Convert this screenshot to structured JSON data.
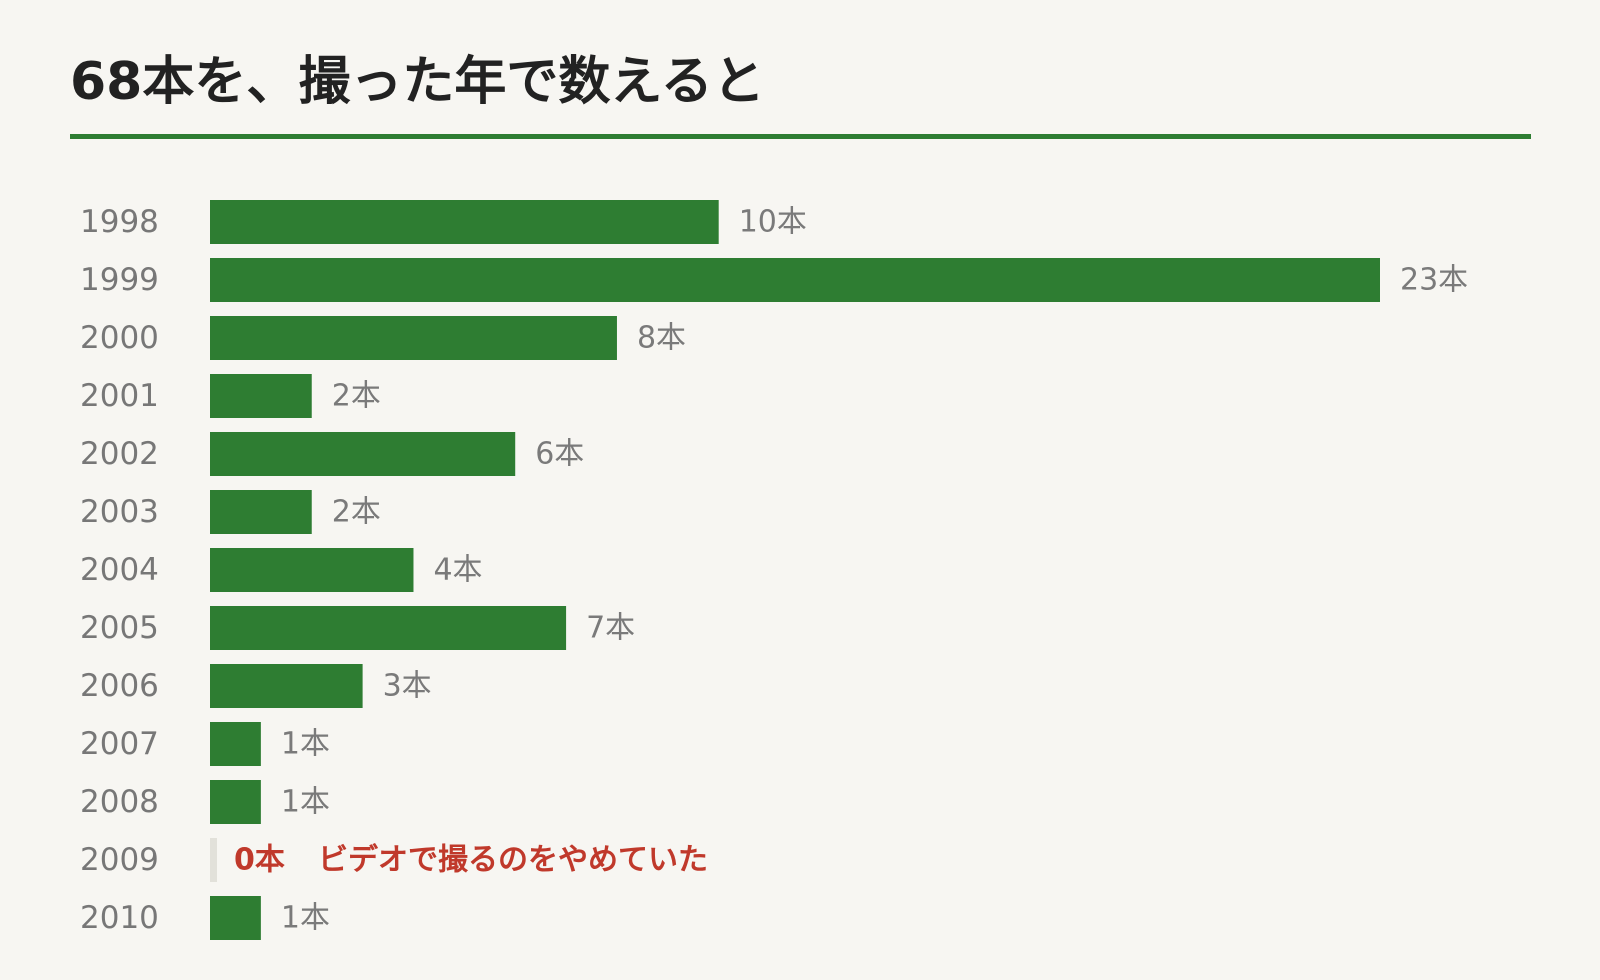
{
  "title": "68本を、撮った年で数えると",
  "colors": {
    "bar": "#2e7d32",
    "zero_marker": "#e2e1da",
    "highlight": "#c0392b",
    "label": "#777777"
  },
  "chart_data": {
    "type": "bar",
    "orientation": "horizontal",
    "title": "68本を、撮った年で数えると",
    "xlabel": "",
    "ylabel": "",
    "unit": "本",
    "grid": false,
    "xlim": [
      0,
      23
    ],
    "categories": [
      "1998",
      "1999",
      "2000",
      "2001",
      "2002",
      "2003",
      "2004",
      "2005",
      "2006",
      "2007",
      "2008",
      "2009",
      "2010"
    ],
    "values": [
      10,
      23,
      8,
      2,
      6,
      2,
      4,
      7,
      3,
      1,
      1,
      0,
      1
    ],
    "value_labels": [
      "10本",
      "23本",
      "8本",
      "2本",
      "6本",
      "2本",
      "4本",
      "7本",
      "3本",
      "1本",
      "1本",
      "0本",
      "1本"
    ],
    "annotations": [
      {
        "category": "2009",
        "text": "ビデオで撮るのをやめていた"
      }
    ]
  }
}
